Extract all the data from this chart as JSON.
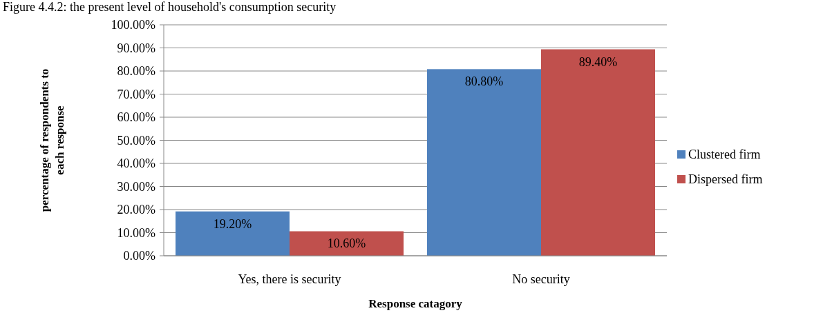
{
  "chart_data": {
    "type": "bar",
    "title": "Figure 4.4.2: the present level of household's consumption security",
    "categories": [
      "Yes, there is security",
      "No security"
    ],
    "series": [
      {
        "name": "Clustered firm",
        "color": "#4f81bd",
        "values": [
          19.2,
          80.8
        ],
        "value_labels": [
          "19.20%",
          "80.80%"
        ]
      },
      {
        "name": "Dispersed firm",
        "color": "#c0504d",
        "values": [
          10.6,
          89.4
        ],
        "value_labels": [
          "10.60%",
          "89.40%"
        ]
      }
    ],
    "ylim": [
      0,
      100
    ],
    "yticks": [
      {
        "value": 0,
        "label": "0.00%"
      },
      {
        "value": 10,
        "label": "10.00%"
      },
      {
        "value": 20,
        "label": "20.00%"
      },
      {
        "value": 30,
        "label": "30.00%"
      },
      {
        "value": 40,
        "label": "40.00%"
      },
      {
        "value": 50,
        "label": "50.00%"
      },
      {
        "value": 60,
        "label": "60.00%"
      },
      {
        "value": 70,
        "label": "70.00%"
      },
      {
        "value": 80,
        "label": "80.00%"
      },
      {
        "value": 90,
        "label": "90.00%"
      },
      {
        "value": 100,
        "label": "100.00%"
      }
    ],
    "ylabel": "percentage of respondents to each response",
    "xlabel": "Response catagory",
    "grid": "y",
    "legend": "right"
  }
}
